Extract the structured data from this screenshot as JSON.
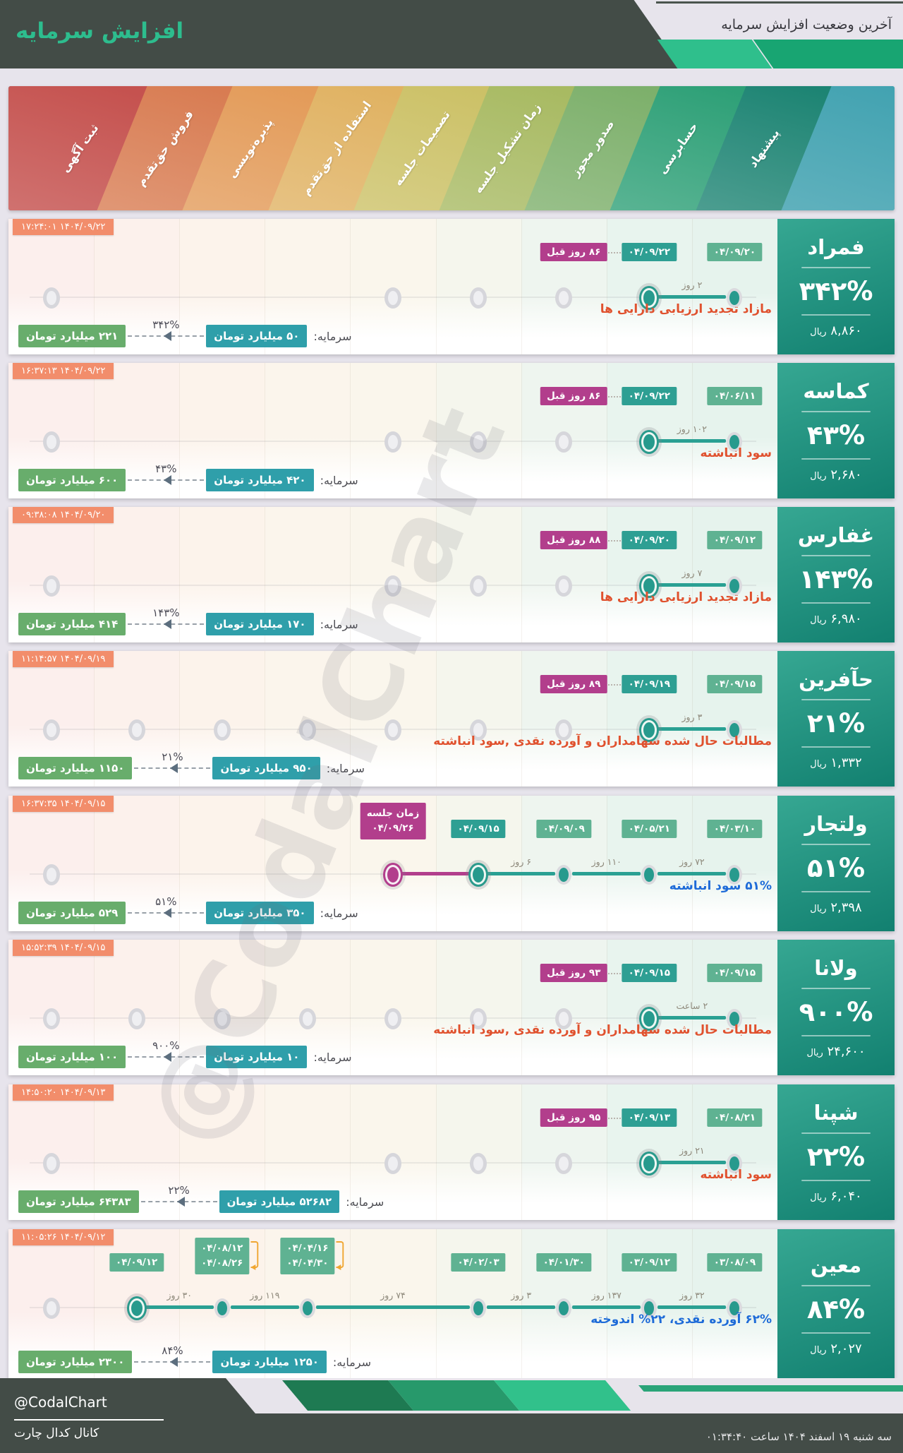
{
  "header": {
    "title": "افزایش سرمایه",
    "subtitle": "آخرین وضعیت افزایش سرمایه"
  },
  "watermark": "@CodalChart",
  "stages": [
    {
      "label": "ثبت آگهی",
      "color": "#c5524f"
    },
    {
      "label": "فروش حق‌تقدم",
      "color": "#d87c52"
    },
    {
      "label": "پذیره‌نویسی",
      "color": "#e39b59"
    },
    {
      "label": "استفاده از حق‌تقدم",
      "color": "#e0b262"
    },
    {
      "label": "تصمیمات جلسه",
      "color": "#ccc167"
    },
    {
      "label": "زمان تشکیل جلسه",
      "color": "#a8ba62"
    },
    {
      "label": "صدور مجوز",
      "color": "#7db06b"
    },
    {
      "label": "حسابرسی",
      "color": "#2ea077"
    },
    {
      "label": "پیشنهاد",
      "color": "#1d8473"
    }
  ],
  "band_cap_color": "#3b9fae",
  "chip_colors": {
    "green": "#5fb292",
    "teal": "#2e9f93",
    "magenta": "#b23e8c"
  },
  "segment_colors": {
    "teal": "#2aa093",
    "magenta": "#b23e8c"
  },
  "desc_colors": {
    "red": "#e0512e",
    "blue": "#1e6bd8"
  },
  "companies": [
    {
      "name": "فمراد",
      "percent": "۳۴۲%",
      "price": "۸,۸۶۰",
      "price_unit": "ریال",
      "timestamp": "۱۴۰۴/۰۹/۲۲ ۱۷:۲۴:۰۱",
      "description": "مازاد تجدید ارزیابی دارایی ها",
      "description_color": "red",
      "ago": "۸۶ روز قبل",
      "nodes": [
        {
          "stage": 1,
          "state": "empty"
        },
        {
          "stage": 5,
          "state": "empty"
        },
        {
          "stage": 6,
          "state": "empty"
        },
        {
          "stage": 7,
          "state": "empty"
        },
        {
          "stage": 8,
          "state": "active",
          "chip": "۰۴/۰۹/۲۲",
          "chip_style": "teal"
        },
        {
          "stage": 9,
          "state": "done",
          "chip": "۰۴/۰۹/۲۰",
          "chip_style": "green"
        }
      ],
      "segments": [
        {
          "a": 8,
          "b": 9,
          "label": "۲ روز",
          "color": "teal"
        }
      ],
      "capital": {
        "label": "سرمایه:",
        "from": "۵۰ میلیارد تومان",
        "to": "۲۲۱ میلیارد تومان",
        "percent": "۳۴۲%"
      }
    },
    {
      "name": "کماسه",
      "percent": "۴۳%",
      "price": "۲,۶۸۰",
      "price_unit": "ریال",
      "timestamp": "۱۴۰۴/۰۹/۲۲ ۱۶:۳۷:۱۳",
      "description": "سود انباشته",
      "description_color": "red",
      "ago": "۸۶ روز قبل",
      "nodes": [
        {
          "stage": 1,
          "state": "empty"
        },
        {
          "stage": 5,
          "state": "empty"
        },
        {
          "stage": 6,
          "state": "empty"
        },
        {
          "stage": 7,
          "state": "empty"
        },
        {
          "stage": 8,
          "state": "active",
          "chip": "۰۴/۰۹/۲۲",
          "chip_style": "teal"
        },
        {
          "stage": 9,
          "state": "done",
          "chip": "۰۴/۰۶/۱۱",
          "chip_style": "green"
        }
      ],
      "segments": [
        {
          "a": 8,
          "b": 9,
          "label": "۱۰۲ روز",
          "color": "teal"
        }
      ],
      "capital": {
        "label": "سرمایه:",
        "from": "۴۲۰ میلیارد تومان",
        "to": "۶۰۰ میلیارد تومان",
        "percent": "۴۳%"
      }
    },
    {
      "name": "غفارس",
      "percent": "۱۴۳%",
      "price": "۶,۹۸۰",
      "price_unit": "ریال",
      "timestamp": "۱۴۰۴/۰۹/۲۰ ۰۹:۳۸:۰۸",
      "description": "مازاد تجدید ارزیابی دارایی ها",
      "description_color": "red",
      "ago": "۸۸ روز قبل",
      "nodes": [
        {
          "stage": 1,
          "state": "empty"
        },
        {
          "stage": 5,
          "state": "empty"
        },
        {
          "stage": 6,
          "state": "empty"
        },
        {
          "stage": 7,
          "state": "empty"
        },
        {
          "stage": 8,
          "state": "active",
          "chip": "۰۴/۰۹/۲۰",
          "chip_style": "teal"
        },
        {
          "stage": 9,
          "state": "done",
          "chip": "۰۴/۰۹/۱۲",
          "chip_style": "green"
        }
      ],
      "segments": [
        {
          "a": 8,
          "b": 9,
          "label": "۷ روز",
          "color": "teal"
        }
      ],
      "capital": {
        "label": "سرمایه:",
        "from": "۱۷۰ میلیارد تومان",
        "to": "۴۱۴ میلیارد تومان",
        "percent": "۱۴۳%"
      }
    },
    {
      "name": "حآفرین",
      "percent": "۲۱%",
      "price": "۱,۳۳۲",
      "price_unit": "ریال",
      "timestamp": "۱۴۰۴/۰۹/۱۹ ۱۱:۱۴:۵۷",
      "description": "مطالبات حال شده سهامداران و آورده نقدی ,سود انباشته",
      "description_color": "red",
      "ago": "۸۹ روز قبل",
      "nodes": [
        {
          "stage": 1,
          "state": "empty"
        },
        {
          "stage": 2,
          "state": "empty"
        },
        {
          "stage": 3,
          "state": "empty"
        },
        {
          "stage": 4,
          "state": "empty"
        },
        {
          "stage": 5,
          "state": "empty"
        },
        {
          "stage": 6,
          "state": "empty"
        },
        {
          "stage": 7,
          "state": "empty"
        },
        {
          "stage": 8,
          "state": "active",
          "chip": "۰۴/۰۹/۱۹",
          "chip_style": "teal"
        },
        {
          "stage": 9,
          "state": "done",
          "chip": "۰۴/۰۹/۱۵",
          "chip_style": "green"
        }
      ],
      "segments": [
        {
          "a": 8,
          "b": 9,
          "label": "۳ روز",
          "color": "teal"
        }
      ],
      "capital": {
        "label": "سرمایه:",
        "from": "۹۵۰ میلیارد تومان",
        "to": "۱۱۵۰ میلیارد تومان",
        "percent": "۲۱%"
      }
    },
    {
      "name": "ولتجار",
      "percent": "۵۱%",
      "price": "۲,۳۹۸",
      "price_unit": "ریال",
      "timestamp": "۱۴۰۴/۰۹/۱۵ ۱۶:۳۷:۳۵",
      "description": "۵۱% سود انباشته",
      "description_color": "blue",
      "ago": null,
      "nodes": [
        {
          "stage": 1,
          "state": "empty"
        },
        {
          "stage": 5,
          "state": "meeting",
          "chip2": [
            "زمان جلسه",
            "۰۴/۰۹/۲۶"
          ],
          "chip_style": "magenta"
        },
        {
          "stage": 6,
          "state": "active",
          "chip": "۰۴/۰۹/۱۵",
          "chip_style": "teal"
        },
        {
          "stage": 7,
          "state": "done",
          "chip": "۰۴/۰۹/۰۹",
          "chip_style": "green"
        },
        {
          "stage": 8,
          "state": "done",
          "chip": "۰۴/۰۵/۲۱",
          "chip_style": "green"
        },
        {
          "stage": 9,
          "state": "done",
          "chip": "۰۴/۰۳/۱۰",
          "chip_style": "green"
        }
      ],
      "segments": [
        {
          "a": 5,
          "b": 6,
          "label": "",
          "color": "magenta"
        },
        {
          "a": 6,
          "b": 7,
          "label": "۶ روز",
          "color": "teal"
        },
        {
          "a": 7,
          "b": 8,
          "label": "۱۱۰ روز",
          "color": "teal"
        },
        {
          "a": 8,
          "b": 9,
          "label": "۷۲ روز",
          "color": "teal"
        }
      ],
      "capital": {
        "label": "سرمایه:",
        "from": "۳۵۰ میلیارد تومان",
        "to": "۵۲۹ میلیارد تومان",
        "percent": "۵۱%"
      }
    },
    {
      "name": "ولانا",
      "percent": "۹۰۰%",
      "price": "۲۴,۶۰۰",
      "price_unit": "ریال",
      "timestamp": "۱۴۰۴/۰۹/۱۵ ۱۵:۵۲:۳۹",
      "description": "مطالبات حال شده سهامداران و آورده نقدی ,سود انباشته",
      "description_color": "red",
      "ago": "۹۳ روز قبل",
      "nodes": [
        {
          "stage": 1,
          "state": "empty"
        },
        {
          "stage": 2,
          "state": "empty"
        },
        {
          "stage": 3,
          "state": "empty"
        },
        {
          "stage": 4,
          "state": "empty"
        },
        {
          "stage": 5,
          "state": "empty"
        },
        {
          "stage": 6,
          "state": "empty"
        },
        {
          "stage": 7,
          "state": "empty"
        },
        {
          "stage": 8,
          "state": "active",
          "chip": "۰۴/۰۹/۱۵",
          "chip_style": "teal"
        },
        {
          "stage": 9,
          "state": "done",
          "chip": "۰۴/۰۹/۱۵",
          "chip_style": "green"
        }
      ],
      "segments": [
        {
          "a": 8,
          "b": 9,
          "label": "۲ ساعت",
          "color": "teal"
        }
      ],
      "capital": {
        "label": "سرمایه:",
        "from": "۱۰ میلیارد تومان",
        "to": "۱۰۰ میلیارد تومان",
        "percent": "۹۰۰%"
      }
    },
    {
      "name": "شپنا",
      "percent": "۲۲%",
      "price": "۶,۰۴۰",
      "price_unit": "ریال",
      "timestamp": "۱۴۰۴/۰۹/۱۳ ۱۴:۵۰:۲۰",
      "description": "سود انباشته",
      "description_color": "red",
      "ago": "۹۵ روز قبل",
      "nodes": [
        {
          "stage": 1,
          "state": "empty"
        },
        {
          "stage": 5,
          "state": "empty"
        },
        {
          "stage": 6,
          "state": "empty"
        },
        {
          "stage": 7,
          "state": "empty"
        },
        {
          "stage": 8,
          "state": "active",
          "chip": "۰۴/۰۹/۱۳",
          "chip_style": "teal"
        },
        {
          "stage": 9,
          "state": "done",
          "chip": "۰۴/۰۸/۲۱",
          "chip_style": "green"
        }
      ],
      "segments": [
        {
          "a": 8,
          "b": 9,
          "label": "۲۱ روز",
          "color": "teal"
        }
      ],
      "capital": {
        "label": "سرمایه:",
        "from": "۵۲۶۸۲ میلیارد تومان",
        "to": "۶۴۳۸۳ میلیارد تومان",
        "percent": "۲۲%"
      }
    },
    {
      "name": "معین",
      "percent": "۸۴%",
      "price": "۲,۰۲۷",
      "price_unit": "ریال",
      "timestamp": "۱۴۰۴/۰۹/۱۲ ۱۱:۰۵:۲۶",
      "description": "۶۲% آورده نقدی، ۲۲% اندوخته",
      "description_color": "blue",
      "ago": null,
      "nodes": [
        {
          "stage": 1,
          "state": "empty"
        },
        {
          "stage": 2,
          "state": "active",
          "chip": "۰۴/۰۹/۱۲",
          "chip_style": "green"
        },
        {
          "stage": 3,
          "state": "done",
          "chip2": [
            "۰۴/۰۸/۱۲",
            "۰۴/۰۸/۲۶"
          ],
          "chip_style": "green",
          "bracket": true
        },
        {
          "stage": 4,
          "state": "done",
          "chip2": [
            "۰۴/۰۴/۱۶",
            "۰۴/۰۴/۳۰"
          ],
          "chip_style": "green",
          "bracket": true
        },
        {
          "stage": 6,
          "state": "done",
          "chip": "۰۴/۰۲/۰۳",
          "chip_style": "green"
        },
        {
          "stage": 7,
          "state": "done",
          "chip": "۰۴/۰۱/۳۰",
          "chip_style": "green"
        },
        {
          "stage": 8,
          "state": "done",
          "chip": "۰۳/۰۹/۱۲",
          "chip_style": "green"
        },
        {
          "stage": 9,
          "state": "done",
          "chip": "۰۳/۰۸/۰۹",
          "chip_style": "green"
        }
      ],
      "segments": [
        {
          "a": 2,
          "b": 3,
          "label": "۳۰ روز",
          "color": "teal"
        },
        {
          "a": 3,
          "b": 4,
          "label": "۱۱۹ روز",
          "color": "teal"
        },
        {
          "a": 4,
          "b": 6,
          "label": "۷۴ روز",
          "color": "teal"
        },
        {
          "a": 6,
          "b": 7,
          "label": "۳ روز",
          "color": "teal"
        },
        {
          "a": 7,
          "b": 8,
          "label": "۱۳۷ روز",
          "color": "teal"
        },
        {
          "a": 8,
          "b": 9,
          "label": "۳۲ روز",
          "color": "teal"
        }
      ],
      "capital": {
        "label": "سرمایه:",
        "from": "۱۲۵۰ میلیارد تومان",
        "to": "۲۳۰۰ میلیارد تومان",
        "percent": "۸۴%"
      }
    }
  ],
  "footer": {
    "handle": "@CodalChart",
    "channel": "کانال کدال چارت",
    "datetime": "سه شنبه ۱۹ اسفند ۱۴۰۴ ساعت ۰۱:۳۴:۴۰"
  },
  "chart_data": {
    "type": "table",
    "title": "آخرین وضعیت افزایش سرمایه",
    "columns": [
      "symbol",
      "increase_percent",
      "price_rial",
      "capital_from_billion_toman",
      "capital_to_billion_toman",
      "funding_source",
      "last_stage_date",
      "days_ago",
      "last_update"
    ],
    "rows": [
      [
        "فمراد",
        342,
        8860,
        50,
        221,
        "مازاد تجدید ارزیابی دارایی ها",
        "04/09/22",
        86,
        "1404/09/22 17:24:01"
      ],
      [
        "کماسه",
        43,
        2680,
        420,
        600,
        "سود انباشته",
        "04/09/22",
        86,
        "1404/09/22 16:37:13"
      ],
      [
        "غفارس",
        143,
        6980,
        170,
        414,
        "مازاد تجدید ارزیابی دارایی ها",
        "04/09/20",
        88,
        "1404/09/20 09:38:08"
      ],
      [
        "حآفرین",
        21,
        1332,
        950,
        1150,
        "مطالبات حال شده سهامداران و آورده نقدی ,سود انباشته",
        "04/09/19",
        89,
        "1404/09/19 11:14:57"
      ],
      [
        "ولتجار",
        51,
        2398,
        350,
        529,
        "۵۱% سود انباشته",
        "04/09/15",
        null,
        "1404/09/15 16:37:35"
      ],
      [
        "ولانا",
        900,
        24600,
        10,
        100,
        "مطالبات حال شده سهامداران و آورده نقدی ,سود انباشته",
        "04/09/15",
        93,
        "1404/09/15 15:52:39"
      ],
      [
        "شپنا",
        22,
        6040,
        52682,
        64383,
        "سود انباشته",
        "04/09/13",
        95,
        "1404/09/13 14:50:20"
      ],
      [
        "معین",
        84,
        2027,
        1250,
        2300,
        "۶۲% آورده نقدی، ۲۲% اندوخته",
        "04/09/12",
        null,
        "1404/09/12 11:05:26"
      ]
    ]
  }
}
